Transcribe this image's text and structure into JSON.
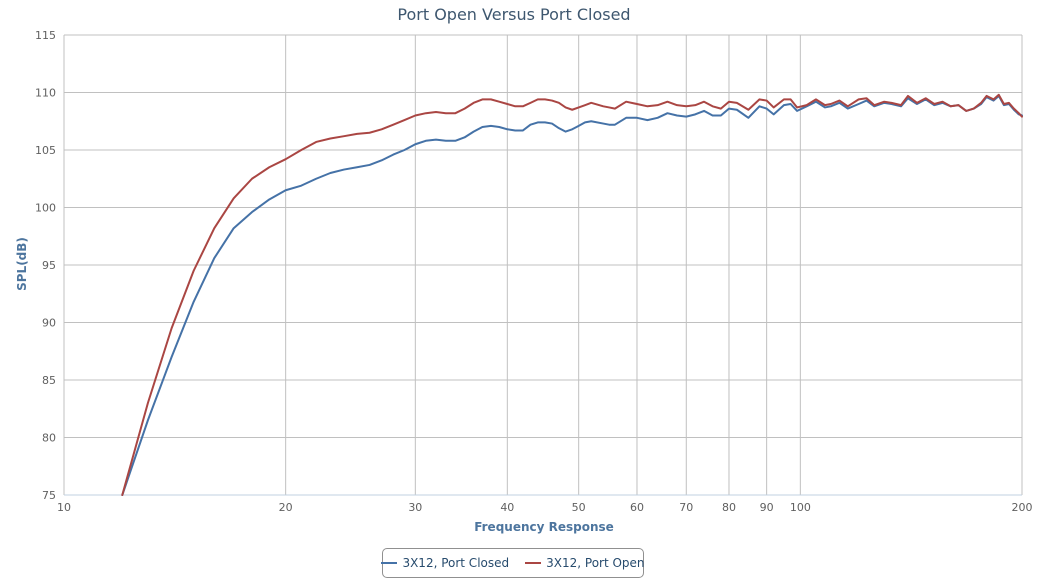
{
  "chart_data": {
    "type": "line",
    "title": "Port Open Versus Port Closed",
    "xlabel": "Frequency Response",
    "ylabel": "SPL(dB)",
    "xscale": "log",
    "xlim": [
      10,
      200
    ],
    "ylim": [
      75,
      115
    ],
    "x_ticks": [
      10,
      20,
      30,
      40,
      50,
      60,
      70,
      80,
      90,
      100,
      200
    ],
    "y_ticks": [
      75,
      80,
      85,
      90,
      95,
      100,
      105,
      110,
      115
    ],
    "grid": true,
    "legend_position": "bottom-center",
    "series": [
      {
        "name": "3X12, Port Closed",
        "color": "#4572a7",
        "points": [
          [
            12,
            75
          ],
          [
            13,
            81.5
          ],
          [
            14,
            87
          ],
          [
            15,
            91.8
          ],
          [
            16,
            95.6
          ],
          [
            17,
            98.2
          ],
          [
            18,
            99.6
          ],
          [
            19,
            100.7
          ],
          [
            20,
            101.5
          ],
          [
            21,
            101.9
          ],
          [
            22,
            102.5
          ],
          [
            23,
            103.0
          ],
          [
            24,
            103.3
          ],
          [
            25,
            103.5
          ],
          [
            26,
            103.7
          ],
          [
            27,
            104.1
          ],
          [
            28,
            104.6
          ],
          [
            29,
            105.0
          ],
          [
            30,
            105.5
          ],
          [
            31,
            105.8
          ],
          [
            32,
            105.9
          ],
          [
            33,
            105.8
          ],
          [
            34,
            105.8
          ],
          [
            35,
            106.1
          ],
          [
            36,
            106.6
          ],
          [
            37,
            107.0
          ],
          [
            38,
            107.1
          ],
          [
            39,
            107.0
          ],
          [
            40,
            106.8
          ],
          [
            41,
            106.7
          ],
          [
            42,
            106.7
          ],
          [
            43,
            107.2
          ],
          [
            44,
            107.4
          ],
          [
            45,
            107.4
          ],
          [
            46,
            107.3
          ],
          [
            47,
            106.9
          ],
          [
            48,
            106.6
          ],
          [
            49,
            106.8
          ],
          [
            50,
            107.1
          ],
          [
            51,
            107.4
          ],
          [
            52,
            107.5
          ],
          [
            54,
            107.3
          ],
          [
            55,
            107.2
          ],
          [
            56,
            107.2
          ],
          [
            58,
            107.8
          ],
          [
            60,
            107.8
          ],
          [
            62,
            107.6
          ],
          [
            64,
            107.8
          ],
          [
            66,
            108.2
          ],
          [
            68,
            108.0
          ],
          [
            70,
            107.9
          ],
          [
            72,
            108.1
          ],
          [
            74,
            108.4
          ],
          [
            76,
            108.0
          ],
          [
            78,
            108.0
          ],
          [
            80,
            108.6
          ],
          [
            82,
            108.5
          ],
          [
            85,
            107.8
          ],
          [
            88,
            108.8
          ],
          [
            90,
            108.6
          ],
          [
            92,
            108.1
          ],
          [
            95,
            108.9
          ],
          [
            97,
            109.0
          ],
          [
            99,
            108.4
          ],
          [
            102,
            108.8
          ],
          [
            105,
            109.2
          ],
          [
            108,
            108.7
          ],
          [
            110,
            108.8
          ],
          [
            113,
            109.1
          ],
          [
            116,
            108.6
          ],
          [
            120,
            109.0
          ],
          [
            123,
            109.3
          ],
          [
            126,
            108.8
          ],
          [
            130,
            109.1
          ],
          [
            133,
            109.0
          ],
          [
            137,
            108.8
          ],
          [
            140,
            109.5
          ],
          [
            144,
            109.0
          ],
          [
            148,
            109.4
          ],
          [
            152,
            108.9
          ],
          [
            156,
            109.1
          ],
          [
            160,
            108.8
          ],
          [
            164,
            108.9
          ],
          [
            168,
            108.4
          ],
          [
            172,
            108.6
          ],
          [
            176,
            109.0
          ],
          [
            179,
            109.6
          ],
          [
            183,
            109.3
          ],
          [
            186,
            109.7
          ],
          [
            189,
            108.9
          ],
          [
            192,
            109.0
          ],
          [
            195,
            108.5
          ],
          [
            198,
            108.1
          ],
          [
            200,
            108.0
          ]
        ]
      },
      {
        "name": "3X12, Port Open",
        "color": "#aa4643",
        "points": [
          [
            12,
            75
          ],
          [
            13,
            83.0
          ],
          [
            14,
            89.5
          ],
          [
            15,
            94.5
          ],
          [
            16,
            98.2
          ],
          [
            17,
            100.8
          ],
          [
            18,
            102.5
          ],
          [
            19,
            103.5
          ],
          [
            20,
            104.2
          ],
          [
            21,
            105.0
          ],
          [
            22,
            105.7
          ],
          [
            23,
            106.0
          ],
          [
            24,
            106.2
          ],
          [
            25,
            106.4
          ],
          [
            26,
            106.5
          ],
          [
            27,
            106.8
          ],
          [
            28,
            107.2
          ],
          [
            29,
            107.6
          ],
          [
            30,
            108.0
          ],
          [
            31,
            108.2
          ],
          [
            32,
            108.3
          ],
          [
            33,
            108.2
          ],
          [
            34,
            108.2
          ],
          [
            35,
            108.6
          ],
          [
            36,
            109.1
          ],
          [
            37,
            109.4
          ],
          [
            38,
            109.4
          ],
          [
            39,
            109.2
          ],
          [
            40,
            109.0
          ],
          [
            41,
            108.8
          ],
          [
            42,
            108.8
          ],
          [
            43,
            109.1
          ],
          [
            44,
            109.4
          ],
          [
            45,
            109.4
          ],
          [
            46,
            109.3
          ],
          [
            47,
            109.1
          ],
          [
            48,
            108.7
          ],
          [
            49,
            108.5
          ],
          [
            50,
            108.7
          ],
          [
            51,
            108.9
          ],
          [
            52,
            109.1
          ],
          [
            54,
            108.8
          ],
          [
            55,
            108.7
          ],
          [
            56,
            108.6
          ],
          [
            58,
            109.2
          ],
          [
            60,
            109.0
          ],
          [
            62,
            108.8
          ],
          [
            64,
            108.9
          ],
          [
            66,
            109.2
          ],
          [
            68,
            108.9
          ],
          [
            70,
            108.8
          ],
          [
            72,
            108.9
          ],
          [
            74,
            109.2
          ],
          [
            76,
            108.8
          ],
          [
            78,
            108.6
          ],
          [
            80,
            109.2
          ],
          [
            82,
            109.1
          ],
          [
            85,
            108.5
          ],
          [
            88,
            109.4
          ],
          [
            90,
            109.3
          ],
          [
            92,
            108.7
          ],
          [
            95,
            109.4
          ],
          [
            97,
            109.4
          ],
          [
            99,
            108.7
          ],
          [
            102,
            108.9
          ],
          [
            105,
            109.4
          ],
          [
            108,
            108.9
          ],
          [
            110,
            109.0
          ],
          [
            113,
            109.3
          ],
          [
            116,
            108.8
          ],
          [
            120,
            109.4
          ],
          [
            123,
            109.5
          ],
          [
            126,
            108.9
          ],
          [
            130,
            109.2
          ],
          [
            133,
            109.1
          ],
          [
            137,
            108.9
          ],
          [
            140,
            109.7
          ],
          [
            144,
            109.1
          ],
          [
            148,
            109.5
          ],
          [
            152,
            109.0
          ],
          [
            156,
            109.2
          ],
          [
            160,
            108.8
          ],
          [
            164,
            108.9
          ],
          [
            168,
            108.4
          ],
          [
            172,
            108.6
          ],
          [
            176,
            109.1
          ],
          [
            179,
            109.7
          ],
          [
            183,
            109.4
          ],
          [
            186,
            109.8
          ],
          [
            189,
            109.0
          ],
          [
            192,
            109.1
          ],
          [
            195,
            108.6
          ],
          [
            198,
            108.2
          ],
          [
            200,
            107.9
          ]
        ]
      }
    ]
  }
}
